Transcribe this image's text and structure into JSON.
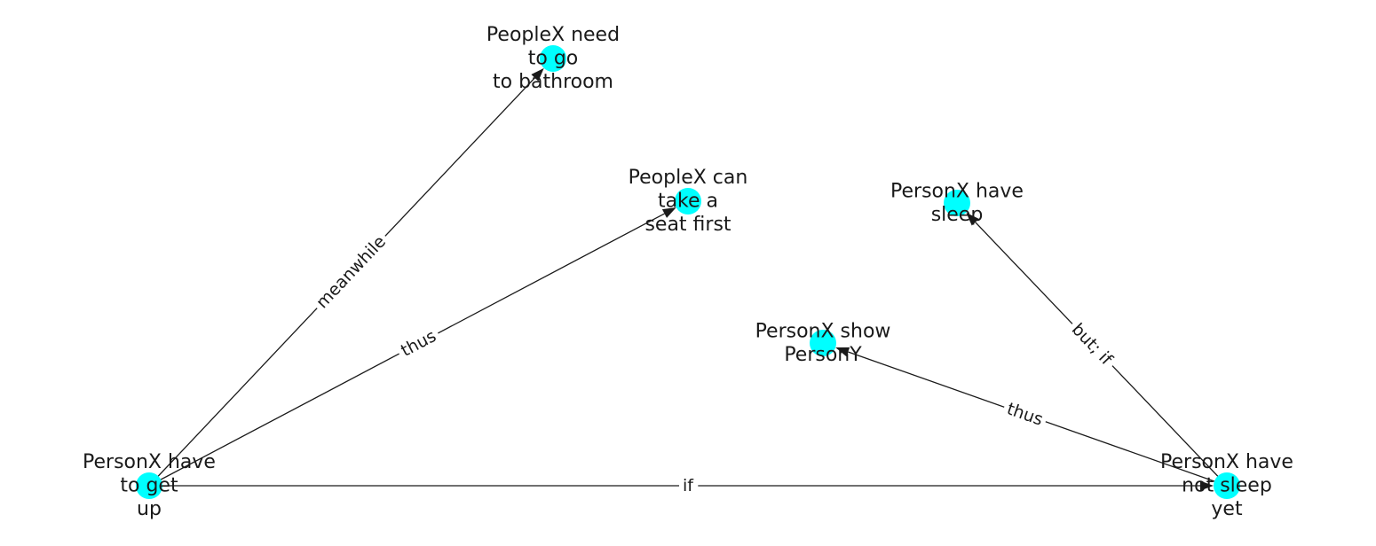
{
  "graph": {
    "node_color": "#00ffff",
    "edge_color": "#1a1a1a",
    "nodes": [
      {
        "id": "get_up",
        "lines": [
          "PersonX have",
          "to get",
          "up"
        ]
      },
      {
        "id": "bathroom",
        "lines": [
          "PeopleX need",
          "to go",
          "to bathroom"
        ]
      },
      {
        "id": "seat",
        "lines": [
          "PeopleX can",
          "take a",
          "seat first"
        ]
      },
      {
        "id": "have_sleep",
        "lines": [
          "PersonX have",
          "sleep"
        ]
      },
      {
        "id": "show",
        "lines": [
          "PersonX show",
          "PersonY"
        ]
      },
      {
        "id": "not_sleep",
        "lines": [
          "PersonX have",
          "not sleep",
          "yet"
        ]
      }
    ],
    "edges": [
      {
        "source": "get_up",
        "target": "bathroom",
        "label": "meanwhile"
      },
      {
        "source": "get_up",
        "target": "seat",
        "label": "thus"
      },
      {
        "source": "get_up",
        "target": "not_sleep",
        "label": "if"
      },
      {
        "source": "not_sleep",
        "target": "show",
        "label": "thus"
      },
      {
        "source": "not_sleep",
        "target": "have_sleep",
        "label": "but; if"
      }
    ]
  }
}
